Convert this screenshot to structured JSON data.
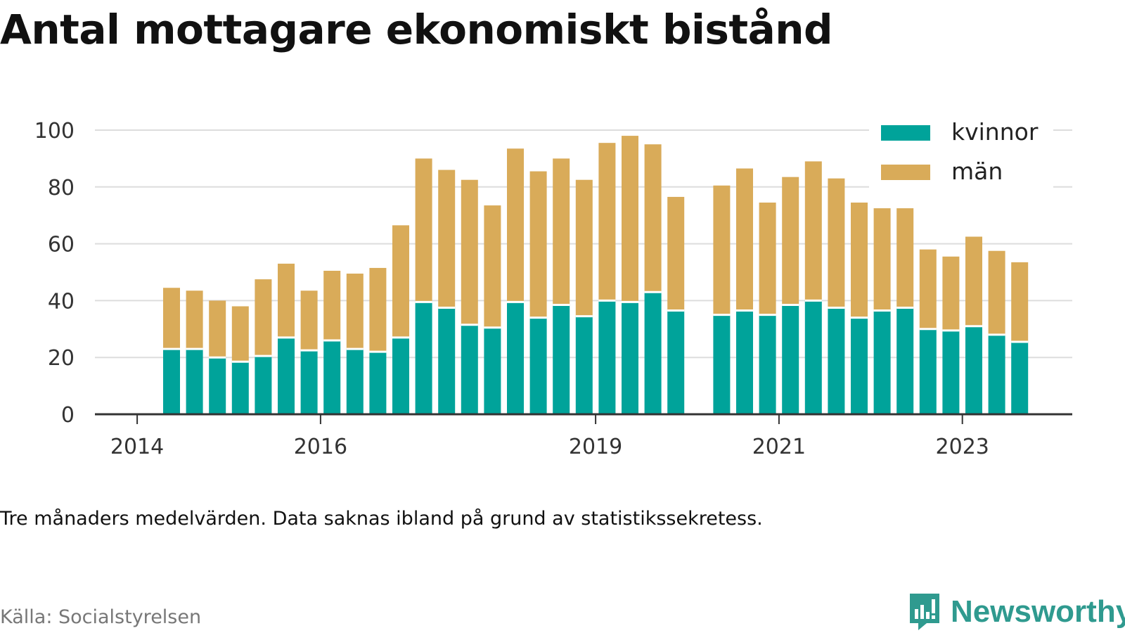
{
  "title": "Antal mottagare ekonomiskt bistånd",
  "note": "Tre månaders medelvärden. Data saknas ibland på grund av statistikssekretess.",
  "source": "Källa: Socialstyrelsen",
  "brand": {
    "name": "Newsworthy",
    "icon": "newsworthy-logo-icon"
  },
  "colors": {
    "kvinnor": "#00a39a",
    "man": "#d9ab59",
    "grid": "#dddddd",
    "axis": "#333333"
  },
  "chart_data": {
    "type": "bar",
    "stacked": true,
    "ylim": [
      0,
      100
    ],
    "yticks": [
      "0",
      "20",
      "40",
      "60",
      "80",
      "100"
    ],
    "xticks": [
      "2014",
      "2016",
      "2019",
      "2021",
      "2023"
    ],
    "legend": {
      "placement": "top-right",
      "entries": [
        "kvinnor",
        "män"
      ]
    },
    "grid": true,
    "categories": [
      "2014 Q2",
      "2014 Q3",
      "2014 Q4",
      "2015 Q1",
      "2015 Q2",
      "2015 Q3",
      "2015 Q4",
      "2016 Q1",
      "2016 Q2",
      "2016 Q3",
      "2016 Q4",
      "2017 Q1",
      "2017 Q2",
      "2017 Q3",
      "2017 Q4",
      "2018 Q1",
      "2018 Q2",
      "2018 Q3",
      "2018 Q4",
      "2019 Q1",
      "2019 Q2",
      "2019 Q3",
      "2019 Q4",
      "2020 Q1",
      "2020 Q2",
      "2020 Q3",
      "2020 Q4",
      "2021 Q1",
      "2021 Q2",
      "2021 Q3",
      "2021 Q4",
      "2022 Q1",
      "2022 Q2",
      "2022 Q3",
      "2022 Q4",
      "2023 Q1",
      "2023 Q2",
      "2023 Q3"
    ],
    "series": [
      {
        "name": "kvinnor",
        "values": [
          23,
          23,
          20,
          18.5,
          20.5,
          27,
          22.5,
          26,
          23,
          22,
          27,
          39.5,
          37.5,
          31.5,
          30.5,
          39.5,
          34,
          38.5,
          34.5,
          40,
          39.5,
          43,
          36.5,
          null,
          35,
          36.5,
          35,
          38.5,
          40,
          37.5,
          34,
          36.5,
          37.5,
          30,
          29.5,
          31,
          28,
          25.5
        ]
      },
      {
        "name": "män",
        "values": [
          21.5,
          20.5,
          20,
          19.5,
          27,
          26,
          21,
          24.5,
          26.5,
          29.5,
          39.5,
          50.5,
          48.5,
          51,
          43,
          54,
          51.5,
          51.5,
          48,
          55.5,
          58.5,
          52,
          40,
          null,
          45.5,
          50,
          39.5,
          45,
          49,
          45.5,
          40.5,
          36,
          35,
          28,
          26,
          31.5,
          29.5,
          28
        ]
      }
    ]
  }
}
